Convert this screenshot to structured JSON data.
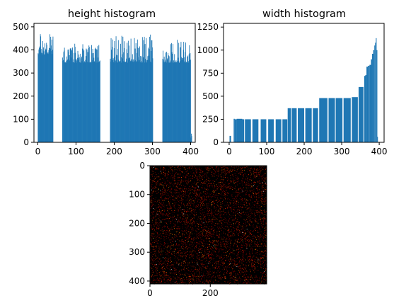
{
  "chart_data": [
    {
      "type": "bar",
      "title": "height histogram",
      "xlabel": "",
      "ylabel": "",
      "xlim": [
        -10,
        412
      ],
      "ylim": [
        0,
        515
      ],
      "xticks": [
        0,
        100,
        200,
        300,
        400
      ],
      "yticks": [
        0,
        100,
        200,
        300,
        400,
        500
      ],
      "bin_width": 1,
      "color": "#1f77b4",
      "segments": [
        {
          "x_start": 0,
          "x_end": 40,
          "base": 380,
          "spread": 95
        },
        {
          "x_start": 64,
          "x_end": 163,
          "base": 345,
          "spread": 75
        },
        {
          "x_start": 189,
          "x_end": 301,
          "base": 345,
          "spread": 115
        },
        {
          "x_start": 326,
          "x_end": 400,
          "base": 345,
          "spread": 95
        },
        {
          "x_start": 400,
          "x_end": 403,
          "base": 20,
          "spread": 20
        }
      ]
    },
    {
      "type": "bar",
      "title": "width histogram",
      "xlabel": "",
      "ylabel": "",
      "xlim": [
        -15,
        413
      ],
      "ylim": [
        0,
        1290
      ],
      "xticks": [
        0,
        100,
        200,
        300,
        400
      ],
      "yticks": [
        0,
        250,
        500,
        750,
        1000,
        1250
      ],
      "color": "#1f77b4",
      "bars": [
        {
          "x_start": 1,
          "x_end": 5,
          "value": 70
        },
        {
          "x_start": 12,
          "x_end": 15,
          "value": 255
        },
        {
          "x_start": 15,
          "x_end": 20,
          "value": 250
        },
        {
          "x_start": 20,
          "x_end": 35,
          "value": 255
        },
        {
          "x_start": 35,
          "x_end": 40,
          "value": 250
        },
        {
          "x_start": 42,
          "x_end": 58,
          "value": 250
        },
        {
          "x_start": 62,
          "x_end": 78,
          "value": 250
        },
        {
          "x_start": 84,
          "x_end": 99,
          "value": 250
        },
        {
          "x_start": 104,
          "x_end": 119,
          "value": 250
        },
        {
          "x_start": 124,
          "x_end": 139,
          "value": 250
        },
        {
          "x_start": 142,
          "x_end": 155,
          "value": 250
        },
        {
          "x_start": 156,
          "x_end": 165,
          "value": 370
        },
        {
          "x_start": 167,
          "x_end": 180,
          "value": 370
        },
        {
          "x_start": 183,
          "x_end": 200,
          "value": 370
        },
        {
          "x_start": 203,
          "x_end": 220,
          "value": 370
        },
        {
          "x_start": 223,
          "x_end": 237,
          "value": 370
        },
        {
          "x_start": 240,
          "x_end": 262,
          "value": 480
        },
        {
          "x_start": 265,
          "x_end": 282,
          "value": 480
        },
        {
          "x_start": 284,
          "x_end": 302,
          "value": 480
        },
        {
          "x_start": 305,
          "x_end": 324,
          "value": 480
        },
        {
          "x_start": 327,
          "x_end": 343,
          "value": 490
        },
        {
          "x_start": 345,
          "x_end": 358,
          "value": 600
        },
        {
          "x_start": 360,
          "x_end": 363,
          "value": 720
        },
        {
          "x_start": 363,
          "x_end": 366,
          "value": 730
        },
        {
          "x_start": 366,
          "x_end": 370,
          "value": 820
        },
        {
          "x_start": 370,
          "x_end": 374,
          "value": 830
        },
        {
          "x_start": 374,
          "x_end": 378,
          "value": 840
        },
        {
          "x_start": 378,
          "x_end": 381,
          "value": 900
        },
        {
          "x_start": 381,
          "x_end": 384,
          "value": 960
        },
        {
          "x_start": 384,
          "x_end": 387,
          "value": 1000
        },
        {
          "x_start": 387,
          "x_end": 389,
          "value": 1050
        },
        {
          "x_start": 389,
          "x_end": 391,
          "value": 1080
        },
        {
          "x_start": 391,
          "x_end": 393,
          "value": 1130
        },
        {
          "x_start": 393,
          "x_end": 395,
          "value": 1000
        },
        {
          "x_start": 395,
          "x_end": 396,
          "value": 60
        }
      ]
    },
    {
      "type": "heatmap",
      "title": "",
      "xlabel": "",
      "ylabel": "",
      "xlim": [
        0,
        387
      ],
      "ylim": [
        410,
        0
      ],
      "xticks": [
        0,
        200
      ],
      "yticks": [
        0,
        100,
        200,
        300,
        400
      ],
      "colormap": "hot",
      "background_color": "#000000",
      "description_pixels": "sparse random red/orange/white pixels on black"
    }
  ]
}
